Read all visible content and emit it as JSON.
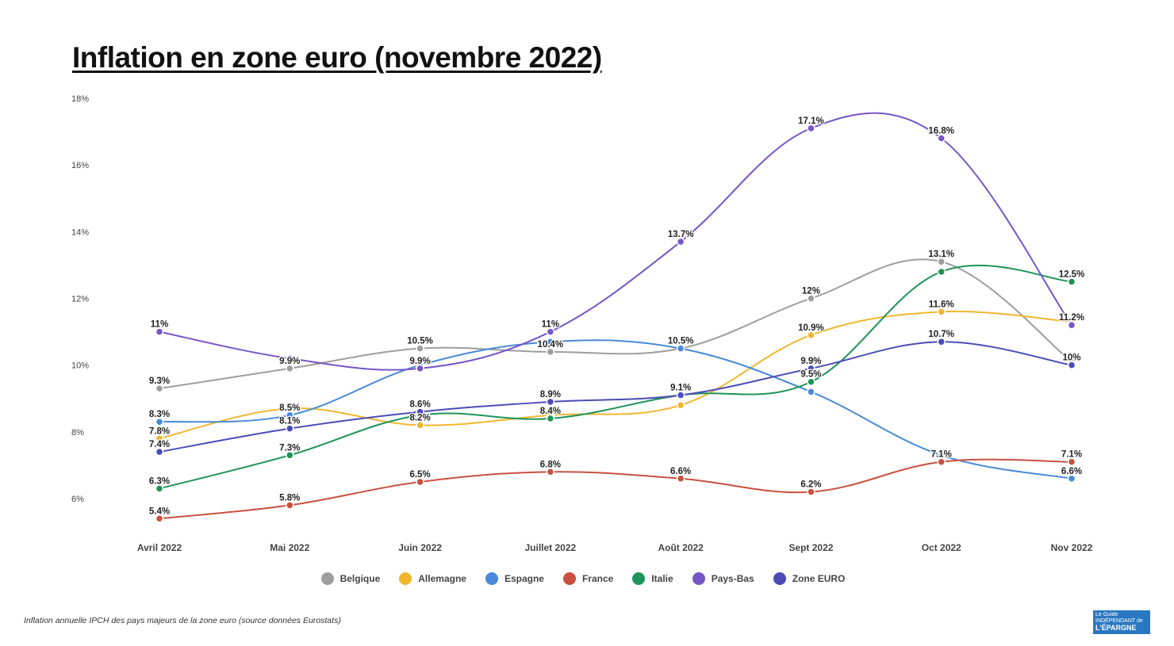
{
  "chart_data": {
    "type": "line",
    "title": "Inflation en zone euro (novembre 2022)",
    "xlabel": "",
    "ylabel": "",
    "categories": [
      "Avril 2022",
      "Mai 2022",
      "Juin 2022",
      "Juillet 2022",
      "Août 2022",
      "Sept 2022",
      "Oct 2022",
      "Nov 2022"
    ],
    "y_ticks": [
      "6%",
      "8%",
      "10%",
      "12%",
      "14%",
      "16%",
      "18%"
    ],
    "ylim": [
      6,
      18
    ],
    "grid": false,
    "legend_position": "bottom",
    "series": [
      {
        "name": "Belgique",
        "color": "#9e9e9e",
        "values": [
          9.3,
          9.9,
          10.5,
          10.4,
          10.5,
          12,
          13.1,
          10.1
        ],
        "labels": [
          "9.3%",
          "9.9%",
          "10.5%",
          "10.4%",
          null,
          "12%",
          "13.1%",
          null
        ]
      },
      {
        "name": "Allemagne",
        "color": "#f0b72f",
        "values": [
          7.8,
          8.7,
          8.2,
          8.5,
          8.8,
          10.9,
          11.6,
          11.3
        ],
        "labels": [
          "7.8%",
          null,
          "8.2%",
          null,
          null,
          "10.9%",
          "11.6%",
          null
        ]
      },
      {
        "name": "Espagne",
        "color": "#4a8ad8",
        "values": [
          8.3,
          8.5,
          10.0,
          10.7,
          10.5,
          9.2,
          7.3,
          6.6
        ],
        "labels": [
          "8.3%",
          "8.5%",
          null,
          null,
          "10.5%",
          null,
          null,
          "6.6%"
        ]
      },
      {
        "name": "France",
        "color": "#c9503f",
        "values": [
          5.4,
          5.8,
          6.5,
          6.8,
          6.6,
          6.2,
          7.1,
          7.1
        ],
        "labels": [
          "5.4%",
          "5.8%",
          "6.5%",
          "6.8%",
          "6.6%",
          "6.2%",
          "7.1%",
          "7.1%"
        ]
      },
      {
        "name": "Italie",
        "color": "#1f935a",
        "values": [
          6.3,
          7.3,
          8.5,
          8.4,
          9.1,
          9.5,
          12.8,
          12.5
        ],
        "labels": [
          "6.3%",
          "7.3%",
          null,
          "8.4%",
          null,
          "9.5%",
          null,
          "12.5%"
        ]
      },
      {
        "name": "Pays-Bas",
        "color": "#7557c6",
        "values": [
          11,
          10.2,
          9.9,
          11,
          13.7,
          17.1,
          16.8,
          11.2
        ],
        "labels": [
          "11%",
          null,
          "9.9%",
          "11%",
          "13.7%",
          "17.1%",
          "16.8%",
          "11.2%"
        ]
      },
      {
        "name": "Zone EURO",
        "color": "#4b4cb6",
        "values": [
          7.4,
          8.1,
          8.6,
          8.9,
          9.1,
          9.9,
          10.7,
          10
        ],
        "labels": [
          "7.4%",
          "8.1%",
          "8.6%",
          "8.9%",
          "9.1%",
          "9.9%",
          "10.7%",
          "10%"
        ]
      }
    ]
  },
  "footnote": "Inflation annuelle IPCH des pays majeurs de la zone euro (source données Eurostats)",
  "logo": {
    "line1": "Le Guide",
    "line2": "INDÉPENDANT de",
    "line3": "L'ÉPARGNE"
  }
}
